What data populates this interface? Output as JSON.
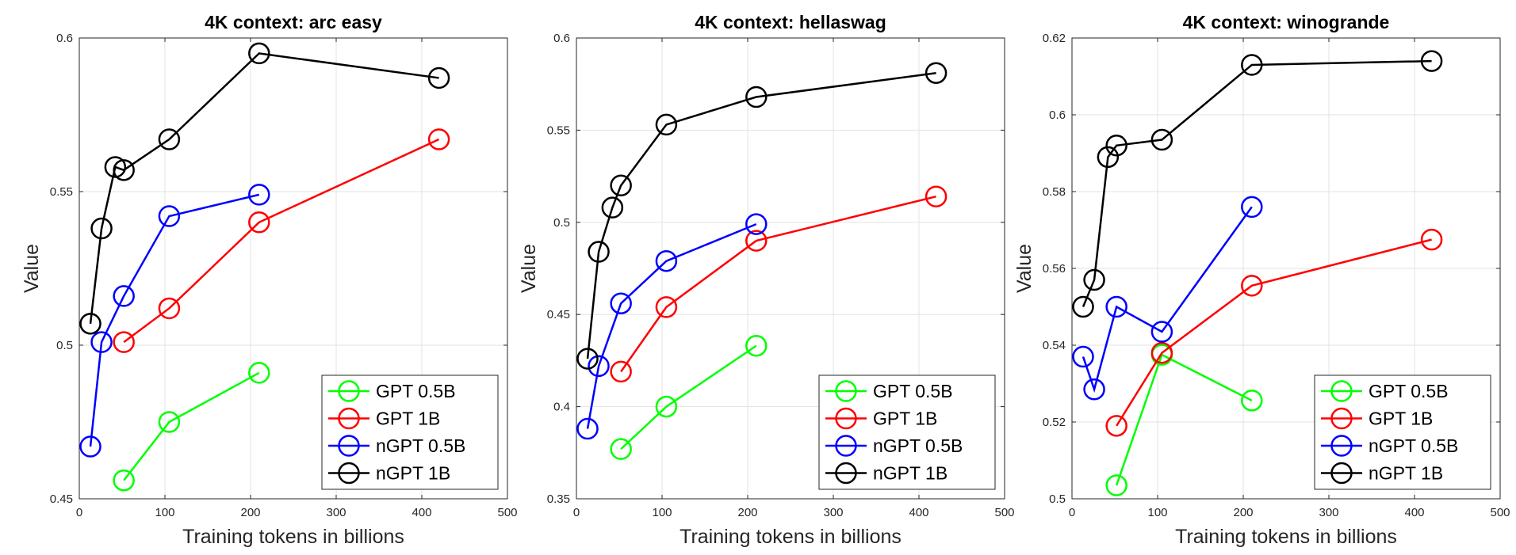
{
  "chart_data": [
    {
      "type": "line",
      "title": "4K context:  arc easy",
      "xlabel": "Training tokens in billions",
      "ylabel": "Value",
      "xlim": [
        0,
        500
      ],
      "ylim": [
        0.45,
        0.6
      ],
      "xticks": [
        "0",
        "100",
        "200",
        "300",
        "400",
        "500"
      ],
      "yticks": [
        "0.45",
        "0.5",
        "0.55",
        "0.6"
      ],
      "grid": true,
      "legend_position": "bottom-right",
      "series": [
        {
          "name": "GPT 0.5B",
          "color": "#00ff00",
          "x": [
            52,
            105,
            210
          ],
          "y": [
            0.456,
            0.475,
            0.491
          ]
        },
        {
          "name": "GPT 1B",
          "color": "#ff0000",
          "x": [
            52,
            105,
            210,
            420
          ],
          "y": [
            0.501,
            0.512,
            0.54,
            0.567
          ]
        },
        {
          "name": "nGPT 0.5B",
          "color": "#0000ff",
          "x": [
            13,
            26,
            52,
            105,
            210
          ],
          "y": [
            0.467,
            0.501,
            0.516,
            0.542,
            0.549
          ]
        },
        {
          "name": "nGPT 1B",
          "color": "#000000",
          "x": [
            13,
            26,
            42,
            52,
            105,
            210,
            420
          ],
          "y": [
            0.507,
            0.538,
            0.558,
            0.557,
            0.567,
            0.595,
            0.587
          ]
        }
      ]
    },
    {
      "type": "line",
      "title": "4K context:  hellaswag",
      "xlabel": "Training tokens in billions",
      "ylabel": "Value",
      "xlim": [
        0,
        500
      ],
      "ylim": [
        0.35,
        0.6
      ],
      "xticks": [
        "0",
        "100",
        "200",
        "300",
        "400",
        "500"
      ],
      "yticks": [
        "0.35",
        "0.4",
        "0.45",
        "0.5",
        "0.55",
        "0.6"
      ],
      "grid": true,
      "legend_position": "bottom-right",
      "series": [
        {
          "name": "GPT 0.5B",
          "color": "#00ff00",
          "x": [
            52,
            105,
            210
          ],
          "y": [
            0.377,
            0.4,
            0.433
          ]
        },
        {
          "name": "GPT 1B",
          "color": "#ff0000",
          "x": [
            52,
            105,
            210,
            420
          ],
          "y": [
            0.419,
            0.454,
            0.49,
            0.514
          ]
        },
        {
          "name": "nGPT 0.5B",
          "color": "#0000ff",
          "x": [
            13,
            26,
            52,
            105,
            210
          ],
          "y": [
            0.388,
            0.422,
            0.456,
            0.479,
            0.499
          ]
        },
        {
          "name": "nGPT 1B",
          "color": "#000000",
          "x": [
            13,
            26,
            42,
            52,
            105,
            210,
            420
          ],
          "y": [
            0.426,
            0.484,
            0.508,
            0.52,
            0.553,
            0.568,
            0.581
          ]
        }
      ]
    },
    {
      "type": "line",
      "title": "4K context:  winogrande",
      "xlabel": "Training tokens in billions",
      "ylabel": "Value",
      "xlim": [
        0,
        500
      ],
      "ylim": [
        0.5,
        0.62
      ],
      "xticks": [
        "0",
        "100",
        "200",
        "300",
        "400",
        "500"
      ],
      "yticks": [
        "0.5",
        "0.52",
        "0.54",
        "0.56",
        "0.58",
        "0.6",
        "0.62"
      ],
      "grid": true,
      "legend_position": "bottom-right",
      "series": [
        {
          "name": "GPT 0.5B",
          "color": "#00ff00",
          "x": [
            52,
            105,
            210
          ],
          "y": [
            0.5035,
            0.5375,
            0.5256
          ]
        },
        {
          "name": "GPT 1B",
          "color": "#ff0000",
          "x": [
            52,
            105,
            210,
            420
          ],
          "y": [
            0.519,
            0.538,
            0.5555,
            0.5675
          ]
        },
        {
          "name": "nGPT 0.5B",
          "color": "#0000ff",
          "x": [
            13,
            26,
            52,
            105,
            210
          ],
          "y": [
            0.537,
            0.5285,
            0.55,
            0.5435,
            0.576
          ]
        },
        {
          "name": "nGPT 1B",
          "color": "#000000",
          "x": [
            13,
            26,
            42,
            52,
            105,
            210,
            420
          ],
          "y": [
            0.55,
            0.557,
            0.589,
            0.592,
            0.5935,
            0.613,
            0.614
          ]
        }
      ]
    }
  ]
}
